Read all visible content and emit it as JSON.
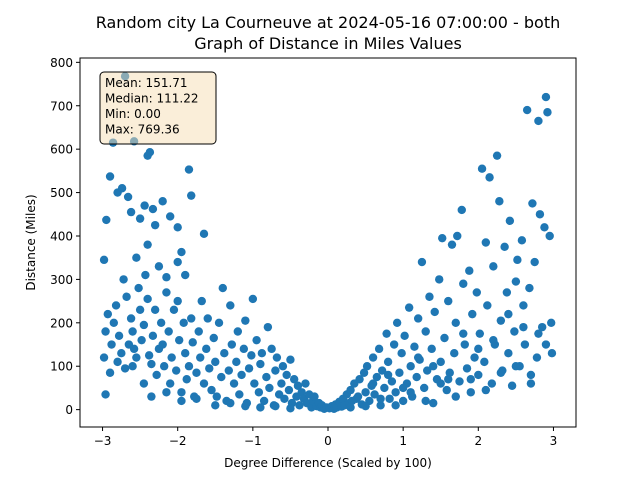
{
  "chart_data": {
    "type": "scatter",
    "title_line1": "Random city La Courneuve at 2024-05-16 07:00:00  - both",
    "title_line2": "Graph of Distance in Miles Values",
    "xlabel": "Degree Difference (Scaled by 100)",
    "ylabel": "Distance (Miles)",
    "xlim": [
      -3.3,
      3.3
    ],
    "ylim": [
      -40,
      810
    ],
    "xticks": [
      -3,
      -2,
      -1,
      0,
      1,
      2,
      3
    ],
    "yticks": [
      0,
      100,
      200,
      300,
      400,
      500,
      600,
      700,
      800
    ],
    "point_color": "#1f77b4",
    "stats": {
      "mean": "Mean: 151.71",
      "median": "Median: 111.22",
      "min": "Min: 0.00",
      "max": "Max: 769.36"
    },
    "points": [
      [
        -2.98,
        345
      ],
      [
        -2.95,
        437
      ],
      [
        -2.9,
        537
      ],
      [
        -2.86,
        615
      ],
      [
        -2.8,
        500
      ],
      [
        -2.74,
        510
      ],
      [
        -2.7,
        768
      ],
      [
        -2.66,
        490
      ],
      [
        -2.62,
        455
      ],
      [
        -2.58,
        618
      ],
      [
        -2.5,
        440
      ],
      [
        -2.44,
        470
      ],
      [
        -2.4,
        585
      ],
      [
        -2.37,
        593
      ],
      [
        -2.33,
        462
      ],
      [
        -2.3,
        425
      ],
      [
        -2.2,
        480
      ],
      [
        -2.1,
        445
      ],
      [
        -2.0,
        420
      ],
      [
        -1.95,
        363
      ],
      [
        -1.85,
        553
      ],
      [
        -1.82,
        493
      ],
      [
        -1.65,
        405
      ],
      [
        -2.55,
        350
      ],
      [
        -2.4,
        380
      ],
      [
        -2.25,
        330
      ],
      [
        -2.15,
        305
      ],
      [
        -2.0,
        340
      ],
      [
        -1.9,
        310
      ],
      [
        -2.98,
        120
      ],
      [
        -2.96,
        180
      ],
      [
        -2.93,
        220
      ],
      [
        -2.9,
        85
      ],
      [
        -2.88,
        150
      ],
      [
        -2.85,
        200
      ],
      [
        -2.82,
        240
      ],
      [
        -2.8,
        110
      ],
      [
        -2.78,
        170
      ],
      [
        -2.75,
        130
      ],
      [
        -2.72,
        300
      ],
      [
        -2.7,
        95
      ],
      [
        -2.68,
        260
      ],
      [
        -2.65,
        150
      ],
      [
        -2.62,
        210
      ],
      [
        -2.6,
        180
      ],
      [
        -2.58,
        140
      ],
      [
        -2.55,
        120
      ],
      [
        -2.52,
        280
      ],
      [
        -2.5,
        230
      ],
      [
        -2.48,
        160
      ],
      [
        -2.45,
        195
      ],
      [
        -2.43,
        310
      ],
      [
        -2.4,
        255
      ],
      [
        -2.38,
        125
      ],
      [
        -2.35,
        105
      ],
      [
        -2.33,
        170
      ],
      [
        -2.3,
        230
      ],
      [
        -2.28,
        80
      ],
      [
        -2.25,
        140
      ],
      [
        -2.22,
        200
      ],
      [
        -2.2,
        150
      ],
      [
        -2.18,
        100
      ],
      [
        -2.15,
        270
      ],
      [
        -2.12,
        180
      ],
      [
        -2.1,
        60
      ],
      [
        -2.08,
        120
      ],
      [
        -2.05,
        230
      ],
      [
        -2.02,
        90
      ],
      [
        -2.0,
        250
      ],
      [
        -1.98,
        160
      ],
      [
        -1.95,
        40
      ],
      [
        -1.92,
        200
      ],
      [
        -1.9,
        130
      ],
      [
        -1.88,
        70
      ],
      [
        -1.85,
        100
      ],
      [
        -1.82,
        210
      ],
      [
        -1.8,
        155
      ],
      [
        -1.78,
        30
      ],
      [
        -1.75,
        85
      ],
      [
        -1.72,
        180
      ],
      [
        -1.7,
        120
      ],
      [
        -1.68,
        250
      ],
      [
        -1.65,
        60
      ],
      [
        -1.62,
        140
      ],
      [
        -1.6,
        210
      ],
      [
        -1.58,
        95
      ],
      [
        -1.55,
        45
      ],
      [
        -1.52,
        165
      ],
      [
        -1.5,
        110
      ],
      [
        -1.48,
        30
      ],
      [
        -1.45,
        200
      ],
      [
        -1.42,
        75
      ],
      [
        -1.4,
        280
      ],
      [
        -1.38,
        130
      ],
      [
        -1.35,
        20
      ],
      [
        -1.32,
        90
      ],
      [
        -1.3,
        240
      ],
      [
        -1.28,
        150
      ],
      [
        -1.25,
        60
      ],
      [
        -1.22,
        110
      ],
      [
        -1.2,
        180
      ],
      [
        -1.18,
        35
      ],
      [
        -1.15,
        80
      ],
      [
        -1.12,
        140
      ],
      [
        -1.1,
        205
      ],
      [
        -1.08,
        15
      ],
      [
        -1.05,
        95
      ],
      [
        -1.02,
        125
      ],
      [
        -1.0,
        255
      ],
      [
        -0.98,
        60
      ],
      [
        -0.95,
        160
      ],
      [
        -0.92,
        40
      ],
      [
        -0.9,
        105
      ],
      [
        -0.88,
        130
      ],
      [
        -0.85,
        20
      ],
      [
        -0.82,
        75
      ],
      [
        -0.8,
        190
      ],
      [
        -0.78,
        50
      ],
      [
        -0.75,
        140
      ],
      [
        -0.72,
        10
      ],
      [
        -0.7,
        90
      ],
      [
        -0.68,
        120
      ],
      [
        -0.65,
        35
      ],
      [
        -0.62,
        60
      ],
      [
        -0.6,
        100
      ],
      [
        -0.58,
        25
      ],
      [
        -0.55,
        80
      ],
      [
        -0.52,
        45
      ],
      [
        -0.5,
        115
      ],
      [
        -0.48,
        15
      ],
      [
        -0.45,
        70
      ],
      [
        -0.42,
        30
      ],
      [
        -0.4,
        55
      ],
      [
        -0.38,
        10
      ],
      [
        -0.35,
        40
      ],
      [
        -0.32,
        25
      ],
      [
        -0.3,
        60
      ],
      [
        -0.28,
        15
      ],
      [
        -0.25,
        35
      ],
      [
        -0.22,
        5
      ],
      [
        -0.2,
        20
      ],
      [
        -0.18,
        30
      ],
      [
        -0.15,
        8
      ],
      [
        -0.12,
        15
      ],
      [
        -0.1,
        5
      ],
      [
        -0.08,
        10
      ],
      [
        -0.05,
        2
      ],
      [
        -0.02,
        5
      ],
      [
        -2.96,
        35
      ],
      [
        -2.6,
        100
      ],
      [
        -2.45,
        60
      ],
      [
        -2.35,
        30
      ],
      [
        -2.15,
        40
      ],
      [
        -1.95,
        20
      ],
      [
        -1.75,
        25
      ],
      [
        -1.5,
        10
      ],
      [
        -1.3,
        15
      ],
      [
        -1.1,
        8
      ],
      [
        -0.9,
        5
      ],
      [
        -0.7,
        8
      ],
      [
        -0.5,
        3
      ],
      [
        0.02,
        3
      ],
      [
        0.05,
        8
      ],
      [
        0.08,
        2
      ],
      [
        0.1,
        12
      ],
      [
        0.12,
        5
      ],
      [
        0.15,
        18
      ],
      [
        0.18,
        7
      ],
      [
        0.2,
        25
      ],
      [
        0.22,
        10
      ],
      [
        0.25,
        35
      ],
      [
        0.28,
        15
      ],
      [
        0.3,
        45
      ],
      [
        0.32,
        20
      ],
      [
        0.35,
        60
      ],
      [
        0.38,
        25
      ],
      [
        0.4,
        30
      ],
      [
        0.42,
        70
      ],
      [
        0.45,
        12
      ],
      [
        0.48,
        85
      ],
      [
        0.5,
        40
      ],
      [
        0.52,
        100
      ],
      [
        0.55,
        20
      ],
      [
        0.58,
        55
      ],
      [
        0.6,
        120
      ],
      [
        0.62,
        35
      ],
      [
        0.65,
        75
      ],
      [
        0.68,
        140
      ],
      [
        0.7,
        10
      ],
      [
        0.72,
        90
      ],
      [
        0.75,
        50
      ],
      [
        0.78,
        175
      ],
      [
        0.8,
        110
      ],
      [
        0.82,
        25
      ],
      [
        0.85,
        65
      ],
      [
        0.88,
        150
      ],
      [
        0.9,
        40
      ],
      [
        0.92,
        200
      ],
      [
        0.95,
        85
      ],
      [
        0.98,
        130
      ],
      [
        1.0,
        20
      ],
      [
        1.02,
        170
      ],
      [
        1.05,
        60
      ],
      [
        1.08,
        235
      ],
      [
        1.1,
        100
      ],
      [
        1.12,
        30
      ],
      [
        1.15,
        145
      ],
      [
        1.18,
        75
      ],
      [
        1.2,
        210
      ],
      [
        1.22,
        115
      ],
      [
        1.25,
        340
      ],
      [
        1.28,
        50
      ],
      [
        1.3,
        180
      ],
      [
        1.32,
        90
      ],
      [
        1.35,
        260
      ],
      [
        1.38,
        140
      ],
      [
        1.4,
        15
      ],
      [
        1.42,
        225
      ],
      [
        1.45,
        70
      ],
      [
        1.48,
        300
      ],
      [
        1.5,
        110
      ],
      [
        1.52,
        395
      ],
      [
        1.55,
        165
      ],
      [
        1.58,
        45
      ],
      [
        1.6,
        250
      ],
      [
        1.62,
        85
      ],
      [
        1.65,
        380
      ],
      [
        1.68,
        130
      ],
      [
        1.7,
        200
      ],
      [
        1.72,
        400
      ],
      [
        1.75,
        65
      ],
      [
        1.78,
        460
      ],
      [
        1.8,
        290
      ],
      [
        1.82,
        150
      ],
      [
        1.85,
        95
      ],
      [
        1.88,
        320
      ],
      [
        1.9,
        40
      ],
      [
        1.92,
        220
      ],
      [
        1.95,
        120
      ],
      [
        1.98,
        270
      ],
      [
        2.0,
        80
      ],
      [
        2.02,
        175
      ],
      [
        2.05,
        555
      ],
      [
        2.08,
        110
      ],
      [
        2.1,
        385
      ],
      [
        2.12,
        240
      ],
      [
        2.15,
        535
      ],
      [
        2.18,
        60
      ],
      [
        2.2,
        330
      ],
      [
        2.22,
        150
      ],
      [
        2.25,
        585
      ],
      [
        2.28,
        480
      ],
      [
        2.3,
        205
      ],
      [
        2.32,
        90
      ],
      [
        2.35,
        375
      ],
      [
        2.38,
        270
      ],
      [
        2.4,
        130
      ],
      [
        2.42,
        435
      ],
      [
        2.45,
        55
      ],
      [
        2.48,
        180
      ],
      [
        2.5,
        295
      ],
      [
        2.52,
        345
      ],
      [
        2.55,
        100
      ],
      [
        2.58,
        390
      ],
      [
        2.6,
        240
      ],
      [
        2.62,
        150
      ],
      [
        2.65,
        690
      ],
      [
        2.68,
        280
      ],
      [
        2.7,
        80
      ],
      [
        2.72,
        475
      ],
      [
        2.75,
        340
      ],
      [
        2.78,
        120
      ],
      [
        2.8,
        665
      ],
      [
        2.82,
        450
      ],
      [
        2.85,
        190
      ],
      [
        2.88,
        420
      ],
      [
        2.9,
        720
      ],
      [
        2.92,
        685
      ],
      [
        2.95,
        400
      ],
      [
        2.97,
        200
      ],
      [
        2.98,
        130
      ],
      [
        0.3,
        5
      ],
      [
        0.5,
        8
      ],
      [
        0.7,
        25
      ],
      [
        0.9,
        10
      ],
      [
        1.1,
        40
      ],
      [
        1.3,
        20
      ],
      [
        1.5,
        60
      ],
      [
        1.7,
        30
      ],
      [
        1.9,
        70
      ],
      [
        2.1,
        45
      ],
      [
        2.3,
        85
      ],
      [
        2.5,
        100
      ],
      [
        2.7,
        60
      ],
      [
        2.9,
        150
      ],
      [
        0.6,
        60
      ],
      [
        0.8,
        80
      ],
      [
        1.0,
        50
      ],
      [
        1.2,
        120
      ],
      [
        1.4,
        100
      ],
      [
        1.6,
        70
      ],
      [
        1.8,
        175
      ],
      [
        2.0,
        140
      ],
      [
        2.2,
        160
      ],
      [
        2.4,
        220
      ],
      [
        2.6,
        190
      ],
      [
        2.8,
        175
      ]
    ]
  }
}
